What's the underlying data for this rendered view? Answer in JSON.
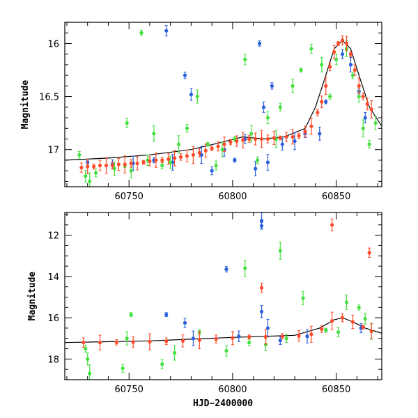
{
  "chart_data": [
    {
      "type": "scatter",
      "panel": "top",
      "title": "",
      "xlabel": "",
      "ylabel": "Magnitude",
      "xlim": [
        60719,
        60872
      ],
      "ylim": [
        17.35,
        15.8
      ],
      "y_inverted": true,
      "x_ticks": [
        60750,
        60800,
        60850
      ],
      "y_ticks": [
        16,
        16.5,
        17
      ],
      "grid": false,
      "legend": "none",
      "model_curve": {
        "color": "#000000",
        "points": [
          [
            60719,
            17.1
          ],
          [
            60740,
            17.08
          ],
          [
            60760,
            17.05
          ],
          [
            60780,
            17.0
          ],
          [
            60795,
            16.93
          ],
          [
            60805,
            16.88
          ],
          [
            60815,
            16.9
          ],
          [
            60825,
            16.88
          ],
          [
            60835,
            16.8
          ],
          [
            60840,
            16.6
          ],
          [
            60845,
            16.3
          ],
          [
            60849,
            16.05
          ],
          [
            60853,
            15.97
          ],
          [
            60857,
            16.05
          ],
          [
            60861,
            16.3
          ],
          [
            60866,
            16.6
          ],
          [
            60872,
            16.78
          ]
        ]
      },
      "series": [
        {
          "color": "#2a5fdc",
          "points": [
            [
              60730,
              17.12
            ],
            [
              60742,
              17.14
            ],
            [
              60752,
              17.13
            ],
            [
              60762,
              17.1
            ],
            [
              60768,
              15.88
            ],
            [
              60771,
              17.12
            ],
            [
              60777,
              16.3
            ],
            [
              60780,
              16.48
            ],
            [
              60785,
              17.05
            ],
            [
              60790,
              17.2
            ],
            [
              60796,
              17.0
            ],
            [
              60801,
              17.1
            ],
            [
              60806,
              16.9
            ],
            [
              60811,
              17.18
            ],
            [
              60813,
              16.0
            ],
            [
              60815,
              16.6
            ],
            [
              60817,
              17.12
            ],
            [
              60819,
              16.4
            ],
            [
              60824,
              16.95
            ],
            [
              60830,
              16.92
            ],
            [
              60835,
              16.85
            ],
            [
              60842,
              16.85
            ],
            [
              60845,
              16.55
            ],
            [
              60853,
              16.1
            ],
            [
              60857,
              16.2
            ],
            [
              60861,
              16.45
            ],
            [
              60864,
              16.7
            ]
          ]
        },
        {
          "color": "#44e040",
          "points": [
            [
              60726,
              17.05
            ],
            [
              60729,
              17.25
            ],
            [
              60731,
              17.3
            ],
            [
              60734,
              17.22
            ],
            [
              60743,
              17.18
            ],
            [
              60748,
              17.15
            ],
            [
              60749,
              16.75
            ],
            [
              60751,
              17.2
            ],
            [
              60756,
              15.9
            ],
            [
              60759,
              17.1
            ],
            [
              60762,
              16.85
            ],
            [
              60766,
              17.15
            ],
            [
              60770,
              17.12
            ],
            [
              60774,
              16.95
            ],
            [
              60778,
              16.8
            ],
            [
              60783,
              16.5
            ],
            [
              60788,
              16.95
            ],
            [
              60792,
              17.15
            ],
            [
              60795,
              17.0
            ],
            [
              60801,
              16.9
            ],
            [
              60806,
              16.15
            ],
            [
              60809,
              16.85
            ],
            [
              60812,
              17.1
            ],
            [
              60817,
              16.7
            ],
            [
              60821,
              16.9
            ],
            [
              60823,
              16.6
            ],
            [
              60829,
              16.4
            ],
            [
              60833,
              16.25
            ],
            [
              60838,
              16.05
            ],
            [
              60843,
              16.2
            ],
            [
              60847,
              16.5
            ],
            [
              60850,
              16.15
            ],
            [
              60855,
              16.05
            ],
            [
              60858,
              16.3
            ],
            [
              60861,
              16.5
            ],
            [
              60863,
              16.8
            ],
            [
              60866,
              16.95
            ],
            [
              60869,
              16.75
            ]
          ]
        },
        {
          "color": "#ff4a2a",
          "points": [
            [
              60727,
              17.17
            ],
            [
              60730,
              17.16
            ],
            [
              60733,
              17.16
            ],
            [
              60736,
              17.15
            ],
            [
              60739,
              17.15
            ],
            [
              60742,
              17.15
            ],
            [
              60745,
              17.14
            ],
            [
              60748,
              17.14
            ],
            [
              60751,
              17.13
            ],
            [
              60754,
              17.13
            ],
            [
              60757,
              17.12
            ],
            [
              60760,
              17.11
            ],
            [
              60763,
              17.1
            ],
            [
              60766,
              17.1
            ],
            [
              60769,
              17.09
            ],
            [
              60772,
              17.08
            ],
            [
              60775,
              17.07
            ],
            [
              60778,
              17.06
            ],
            [
              60781,
              17.05
            ],
            [
              60784,
              17.03
            ],
            [
              60787,
              17.01
            ],
            [
              60790,
              16.99
            ],
            [
              60793,
              16.97
            ],
            [
              60796,
              16.95
            ],
            [
              60799,
              16.93
            ],
            [
              60802,
              16.92
            ],
            [
              60805,
              16.91
            ],
            [
              60808,
              16.9
            ],
            [
              60811,
              16.9
            ],
            [
              60814,
              16.9
            ],
            [
              60817,
              16.9
            ],
            [
              60820,
              16.89
            ],
            [
              60823,
              16.89
            ],
            [
              60826,
              16.88
            ],
            [
              60829,
              16.88
            ],
            [
              60832,
              16.87
            ],
            [
              60835,
              16.83
            ],
            [
              60838,
              16.78
            ],
            [
              60841,
              16.65
            ],
            [
              60843,
              16.55
            ],
            [
              60845,
              16.4
            ],
            [
              60847,
              16.22
            ],
            [
              60849,
              16.08
            ],
            [
              60851,
              16.0
            ],
            [
              60853,
              15.97
            ],
            [
              60855,
              16.0
            ],
            [
              60857,
              16.1
            ],
            [
              60859,
              16.25
            ],
            [
              60861,
              16.4
            ],
            [
              60863,
              16.5
            ],
            [
              60865,
              16.57
            ],
            [
              60867,
              16.62
            ]
          ]
        }
      ]
    },
    {
      "type": "scatter",
      "panel": "bottom",
      "title": "",
      "xlabel": "HJD−2400000",
      "ylabel": "Magnitude",
      "xlim": [
        60719,
        60872
      ],
      "ylim": [
        19.0,
        10.9
      ],
      "y_inverted": true,
      "x_ticks": [
        60750,
        60800,
        60850
      ],
      "y_ticks": [
        12,
        14,
        16,
        18
      ],
      "grid": false,
      "legend": "none",
      "model_curve": {
        "color": "#000000",
        "points": [
          [
            60719,
            17.2
          ],
          [
            60760,
            17.12
          ],
          [
            60800,
            16.95
          ],
          [
            60830,
            16.85
          ],
          [
            60842,
            16.5
          ],
          [
            60849,
            16.1
          ],
          [
            60853,
            16.0
          ],
          [
            60858,
            16.2
          ],
          [
            60864,
            16.5
          ],
          [
            60872,
            16.75
          ]
        ]
      },
      "series": [
        {
          "color": "#2a5fdc",
          "points": [
            [
              60768,
              15.85
            ],
            [
              60777,
              16.25
            ],
            [
              60781,
              17.0
            ],
            [
              60797,
              13.65
            ],
            [
              60803,
              16.9
            ],
            [
              60814,
              11.3
            ],
            [
              60814,
              11.55
            ],
            [
              60814,
              15.7
            ],
            [
              60817,
              16.5
            ],
            [
              60823,
              17.1
            ],
            [
              60836,
              16.9
            ],
            [
              60845,
              16.6
            ],
            [
              60862,
              16.5
            ]
          ]
        },
        {
          "color": "#44e040",
          "points": [
            [
              60729,
              17.5
            ],
            [
              60730,
              18.0
            ],
            [
              60731,
              18.7
            ],
            [
              60747,
              18.45
            ],
            [
              60749,
              17.0
            ],
            [
              60751,
              15.85
            ],
            [
              60766,
              18.25
            ],
            [
              60772,
              17.7
            ],
            [
              60784,
              16.7
            ],
            [
              60797,
              17.6
            ],
            [
              60806,
              13.6
            ],
            [
              60808,
              17.2
            ],
            [
              60816,
              17.3
            ],
            [
              60823,
              12.75
            ],
            [
              60826,
              17.0
            ],
            [
              60834,
              15.05
            ],
            [
              60845,
              16.6
            ],
            [
              60851,
              16.7
            ],
            [
              60855,
              15.25
            ],
            [
              60861,
              15.5
            ],
            [
              60864,
              16.05
            ],
            [
              60867,
              16.65
            ]
          ]
        },
        {
          "color": "#ff4a2a",
          "points": [
            [
              60728,
              17.2
            ],
            [
              60736,
              17.2
            ],
            [
              60744,
              17.19
            ],
            [
              60752,
              17.18
            ],
            [
              60760,
              17.16
            ],
            [
              60768,
              17.14
            ],
            [
              60776,
              17.12
            ],
            [
              60784,
              17.08
            ],
            [
              60792,
              17.03
            ],
            [
              60800,
              16.98
            ],
            [
              60808,
              16.93
            ],
            [
              60814,
              14.55
            ],
            [
              60816,
              16.92
            ],
            [
              60824,
              16.9
            ],
            [
              60832,
              16.88
            ],
            [
              60838,
              16.8
            ],
            [
              60843,
              16.55
            ],
            [
              60848,
              11.5
            ],
            [
              60848,
              16.15
            ],
            [
              60853,
              16.0
            ],
            [
              60858,
              16.2
            ],
            [
              60863,
              16.45
            ],
            [
              60866,
              12.85
            ],
            [
              60867,
              16.65
            ]
          ]
        }
      ]
    }
  ]
}
